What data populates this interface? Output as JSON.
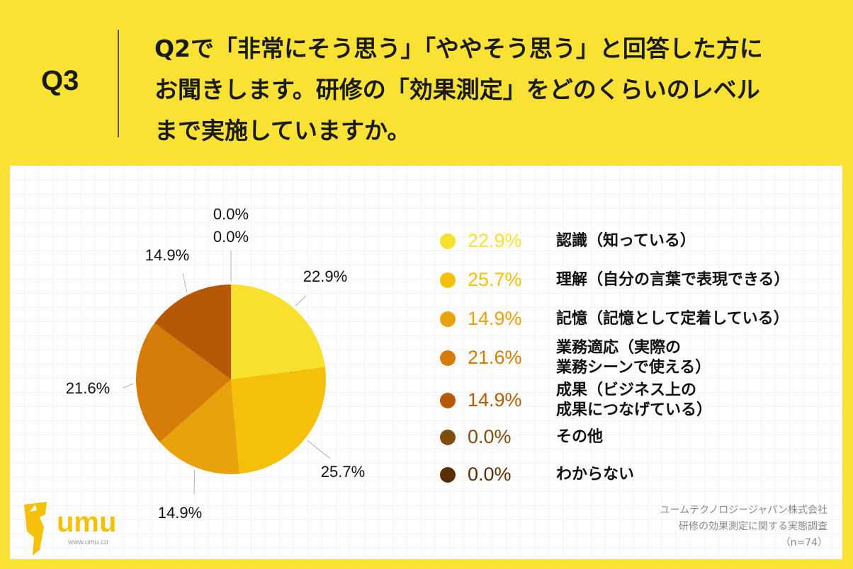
{
  "header": {
    "q_label": "Q3",
    "question_lines": [
      "Q2で「非常にそう思う」「ややそう思う」と回答した方に",
      "お聞きします。研修の「効果測定」をどのくらいのレベル",
      "まで実施していますか。"
    ]
  },
  "chart_data": {
    "type": "pie",
    "slices": [
      {
        "label_lines": [
          "認識（知っている）"
        ],
        "value": 22.9,
        "value_label": "22.9%",
        "color": "#f8e02f"
      },
      {
        "label_lines": [
          "理解（自分の言葉で表現できる）"
        ],
        "value": 25.7,
        "value_label": "25.7%",
        "color": "#f5c00a"
      },
      {
        "label_lines": [
          "記憶（記憶として定着している）"
        ],
        "value": 14.9,
        "value_label": "14.9%",
        "color": "#e8a20c"
      },
      {
        "label_lines": [
          "業務適応（実際の",
          "業務シーンで使える）"
        ],
        "value": 21.6,
        "value_label": "21.6%",
        "color": "#d57c08"
      },
      {
        "label_lines": [
          "成果（ビジネス上の",
          "成果につなげている）"
        ],
        "value": 14.9,
        "value_label": "14.9%",
        "color": "#b55907"
      },
      {
        "label_lines": [
          "その他"
        ],
        "value": 0.0,
        "value_label": "0.0%",
        "color": "#7f4d0d"
      },
      {
        "label_lines": [
          "わからない"
        ],
        "value": 0.0,
        "value_label": "0.0%",
        "color": "#5a2e05"
      }
    ],
    "start_angle": "12 o'clock",
    "direction": "clockwise",
    "legend_position": "right"
  },
  "logo": {
    "name": "umu",
    "url": "www.umu.co",
    "brand_color": "#f5c00a"
  },
  "footer": {
    "lines": [
      "ユームテクノロジージャパン株式会社",
      "研修の効果測定に関する実態調査",
      "（n=74）"
    ]
  }
}
